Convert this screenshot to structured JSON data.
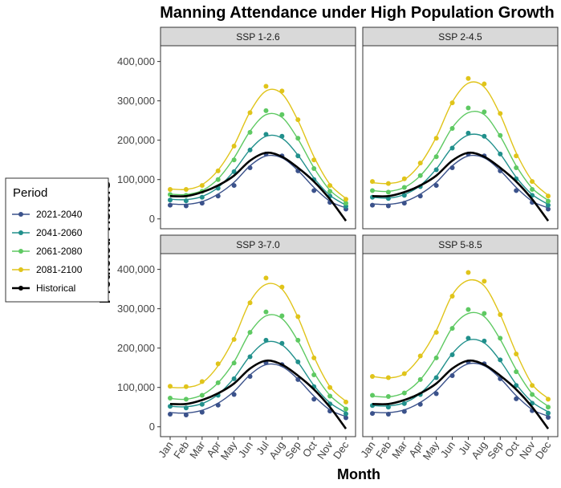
{
  "chart_data": {
    "type": "line",
    "title": "Manning Attendance under High Population Growth",
    "xlabel": "Month",
    "ylabel": "Predicted Visitors",
    "categories": [
      "Jan",
      "Feb",
      "Mar",
      "Apr",
      "May",
      "Jun",
      "Jul",
      "Aug",
      "Sep",
      "Oct",
      "Nov",
      "Dec"
    ],
    "ylim": [
      -25000,
      440000
    ],
    "yticks": [
      0,
      100000,
      200000,
      300000,
      400000
    ],
    "ytick_labels": [
      "0",
      "100,000",
      "200,000",
      "300,000",
      "400,000"
    ],
    "grid": false,
    "legend": {
      "title": "Period",
      "position": "left",
      "entries": [
        {
          "name": "2021-2040",
          "color": "#3b528b"
        },
        {
          "name": "2041-2060",
          "color": "#21908c"
        },
        {
          "name": "2061-2080",
          "color": "#5ec962"
        },
        {
          "name": "2081-2100",
          "color": "#e0c41a"
        },
        {
          "name": "Historical",
          "color": "#000000"
        }
      ]
    },
    "historical": {
      "name": "Historical",
      "color": "#000000",
      "values": [
        58000,
        58000,
        68000,
        85000,
        110000,
        148000,
        168000,
        158000,
        130000,
        95000,
        50000,
        -5000
      ]
    },
    "panels": [
      {
        "label": "SSP 1-2.6",
        "series": [
          {
            "name": "2021-2040",
            "color": "#3b528b",
            "points": [
              35000,
              33000,
              40000,
              58000,
              85000,
              130000,
              165000,
              160000,
              122000,
              72000,
              42000,
              25000
            ],
            "smooth": [
              38000,
              37000,
              44000,
              63000,
              93000,
              135000,
              160000,
              155000,
              123000,
              80000,
              45000,
              28000
            ]
          },
          {
            "name": "2041-2060",
            "color": "#21908c",
            "points": [
              48000,
              46000,
              55000,
              78000,
              120000,
              175000,
              215000,
              210000,
              160000,
              100000,
              58000,
              32000
            ],
            "smooth": [
              50000,
              49000,
              57000,
              80000,
              122000,
              176000,
              210000,
              205000,
              162000,
              104000,
              60000,
              35000
            ]
          },
          {
            "name": "2061-2080",
            "color": "#5ec962",
            "points": [
              62000,
              60000,
              70000,
              100000,
              150000,
              220000,
              275000,
              265000,
              205000,
              128000,
              70000,
              40000
            ],
            "smooth": [
              63000,
              62000,
              72000,
              102000,
              155000,
              223000,
              265000,
              258000,
              203000,
              130000,
              73000,
              42000
            ]
          },
          {
            "name": "2081-2100",
            "color": "#e0c41a",
            "points": [
              75000,
              75000,
              85000,
              122000,
              185000,
              270000,
              337000,
              325000,
              252000,
              150000,
              85000,
              50000
            ],
            "smooth": [
              76000,
              75000,
              87000,
              124000,
              187000,
              272000,
              325000,
              318000,
              250000,
              158000,
              88000,
              52000
            ]
          }
        ]
      },
      {
        "label": "SSP 2-4.5",
        "series": [
          {
            "name": "2021-2040",
            "color": "#3b528b",
            "points": [
              35000,
              33000,
              40000,
              58000,
              85000,
              130000,
              165000,
              160000,
              122000,
              72000,
              42000,
              25000
            ],
            "smooth": [
              38000,
              37000,
              44000,
              63000,
              93000,
              135000,
              160000,
              155000,
              123000,
              80000,
              45000,
              28000
            ]
          },
          {
            "name": "2041-2060",
            "color": "#21908c",
            "points": [
              55000,
              52000,
              60000,
              82000,
              125000,
              180000,
              218000,
              210000,
              165000,
              102000,
              60000,
              35000
            ],
            "smooth": [
              55000,
              53000,
              62000,
              85000,
              127000,
              182000,
              213000,
              208000,
              165000,
              106000,
              62000,
              37000
            ]
          },
          {
            "name": "2061-2080",
            "color": "#5ec962",
            "points": [
              72000,
              68000,
              80000,
              110000,
              158000,
              230000,
              282000,
              272000,
              212000,
              130000,
              75000,
              45000
            ],
            "smooth": [
              72000,
              70000,
              80000,
              110000,
              162000,
              232000,
              270000,
              265000,
              210000,
              135000,
              78000,
              47000
            ]
          },
          {
            "name": "2081-2100",
            "color": "#e0c41a",
            "points": [
              95000,
              90000,
              102000,
              142000,
              205000,
              295000,
              357000,
              343000,
              268000,
              160000,
              95000,
              58000
            ],
            "smooth": [
              92000,
              90000,
              100000,
              140000,
              208000,
              297000,
              345000,
              335000,
              265000,
              168000,
              97000,
              60000
            ]
          }
        ]
      },
      {
        "label": "SSP 3-7.0",
        "series": [
          {
            "name": "2021-2040",
            "color": "#3b528b",
            "points": [
              32000,
              30000,
              37000,
              55000,
              82000,
              128000,
              163000,
              158000,
              120000,
              70000,
              40000,
              23000
            ],
            "smooth": [
              36000,
              35000,
              42000,
              60000,
              90000,
              132000,
              158000,
              153000,
              121000,
              78000,
              43000,
              26000
            ]
          },
          {
            "name": "2041-2060",
            "color": "#21908c",
            "points": [
              52000,
              48000,
              57000,
              80000,
              122000,
              178000,
              220000,
              212000,
              165000,
              102000,
              58000,
              33000
            ],
            "smooth": [
              52000,
              51000,
              59000,
              82000,
              124000,
              180000,
              215000,
              208000,
              164000,
              105000,
              61000,
              36000
            ]
          },
          {
            "name": "2061-2080",
            "color": "#5ec962",
            "points": [
              73000,
              70000,
              80000,
              112000,
              162000,
              240000,
              292000,
              282000,
              220000,
              132000,
              78000,
              45000
            ],
            "smooth": [
              72000,
              70000,
              81000,
              112000,
              165000,
              240000,
              282000,
              275000,
              218000,
              138000,
              80000,
              47000
            ]
          },
          {
            "name": "2081-2100",
            "color": "#e0c41a",
            "points": [
              103000,
              102000,
              115000,
              160000,
              222000,
              315000,
              378000,
              355000,
              280000,
              175000,
              100000,
              63000
            ],
            "smooth": [
              100000,
              100000,
              112000,
              155000,
              225000,
              318000,
              362000,
              350000,
              278000,
              178000,
              102000,
              65000
            ]
          }
        ]
      },
      {
        "label": "SSP 5-8.5",
        "series": [
          {
            "name": "2021-2040",
            "color": "#3b528b",
            "points": [
              34000,
              32000,
              39000,
              57000,
              84000,
              130000,
              165000,
              160000,
              122000,
              71000,
              41000,
              24000
            ],
            "smooth": [
              37000,
              36000,
              43000,
              62000,
              92000,
              134000,
              160000,
              155000,
              123000,
              79000,
              44000,
              27000
            ]
          },
          {
            "name": "2041-2060",
            "color": "#21908c",
            "points": [
              54000,
              50000,
              59000,
              82000,
              125000,
              183000,
              225000,
              218000,
              170000,
              105000,
              60000,
              35000
            ],
            "smooth": [
              54000,
              53000,
              61000,
              85000,
              128000,
              186000,
              220000,
              213000,
              168000,
              108000,
              63000,
              38000
            ]
          },
          {
            "name": "2061-2080",
            "color": "#5ec962",
            "points": [
              80000,
              77000,
              86000,
              120000,
              175000,
              250000,
              298000,
              288000,
              225000,
              140000,
              82000,
              50000
            ],
            "smooth": [
              78000,
              76000,
              87000,
              120000,
              178000,
              252000,
              288000,
              280000,
              222000,
              145000,
              84000,
              52000
            ]
          },
          {
            "name": "2081-2100",
            "color": "#e0c41a",
            "points": [
              128000,
              125000,
              135000,
              180000,
              240000,
              332000,
              392000,
              370000,
              285000,
              185000,
              105000,
              70000
            ],
            "smooth": [
              128000,
              124000,
              135000,
              178000,
              245000,
              335000,
              372000,
              358000,
              285000,
              188000,
              108000,
              72000
            ]
          }
        ]
      }
    ]
  }
}
